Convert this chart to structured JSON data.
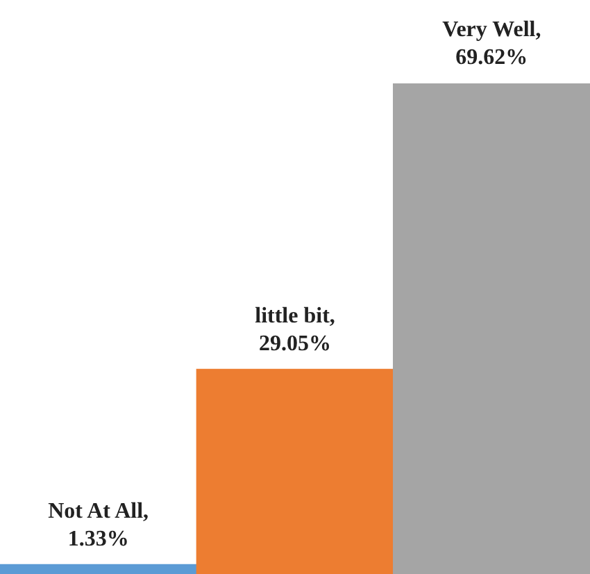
{
  "chart_data": {
    "type": "bar",
    "categories": [
      null,
      null,
      null
    ],
    "values": [
      1.33,
      29.05,
      69.62
    ],
    "colors": [
      "#5b9bd5",
      "#ed7d31",
      "#a5a5a5"
    ],
    "value_labels": [
      "Not At All, 1.33%",
      "little bit, 29.05%",
      "Very Well, 69.62%"
    ],
    "legend": false
  }
}
